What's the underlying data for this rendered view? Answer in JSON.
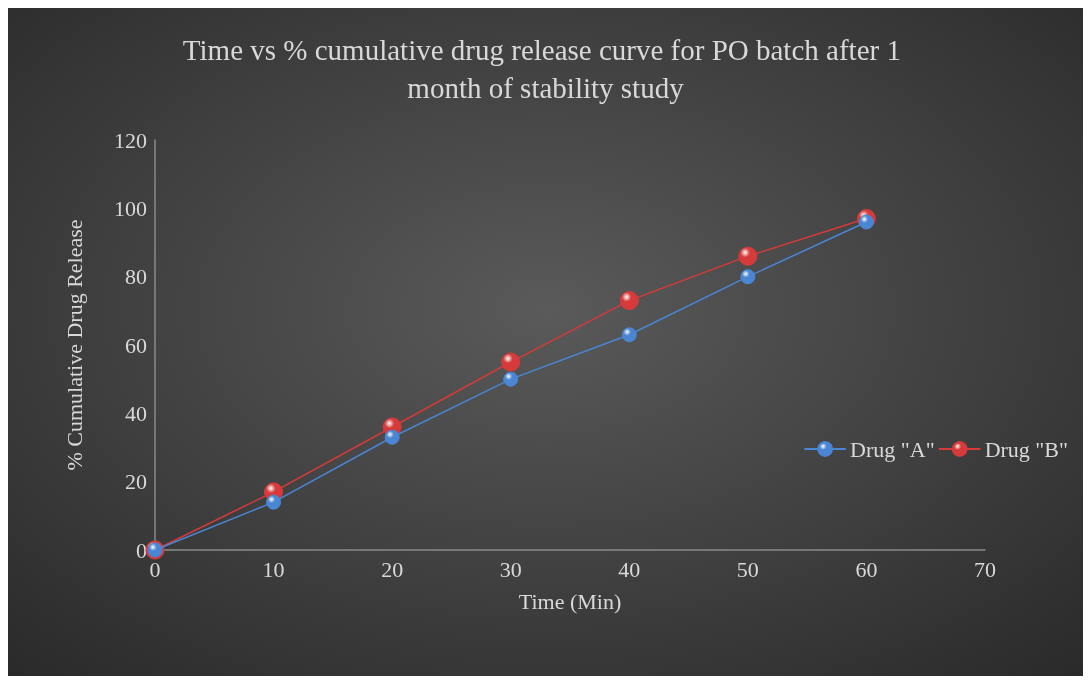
{
  "chart_data": {
    "type": "line",
    "title": "Time vs % cumulative drug release curve for PO batch after 1 month of stability study",
    "xlabel": "Time (Min)",
    "ylabel": "% Cumulative Drug Release",
    "x": [
      0,
      10,
      20,
      30,
      40,
      50,
      60
    ],
    "series": [
      {
        "name": "Drug \"A\"",
        "color": "#4a86d4",
        "values": [
          0,
          14,
          33,
          50,
          63,
          80,
          96
        ]
      },
      {
        "name": "Drug \"B\"",
        "color": "#d63a3a",
        "values": [
          0,
          17,
          36,
          55,
          73,
          86,
          97
        ]
      }
    ],
    "xlim": [
      0,
      70
    ],
    "xticks": [
      0,
      10,
      20,
      30,
      40,
      50,
      60,
      70
    ],
    "ylim": [
      0,
      120
    ],
    "yticks": [
      0,
      20,
      40,
      60,
      80,
      100,
      120
    ],
    "grid": false,
    "legend": "right",
    "marker": "circle",
    "line_style": "solid"
  }
}
